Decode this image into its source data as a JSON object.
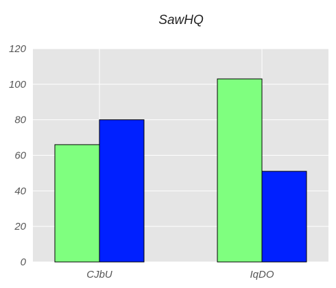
{
  "chart_data": {
    "type": "bar",
    "title": "SawHQ",
    "xlabel": "",
    "ylabel": "",
    "categories": [
      "CJbU",
      "IqDO"
    ],
    "series": [
      {
        "values": [
          66,
          103
        ],
        "color": "#7fff7f"
      },
      {
        "values": [
          80,
          51
        ],
        "color": "#0020ff"
      }
    ],
    "ylim": [
      0,
      120
    ],
    "yticks": [
      0,
      20,
      40,
      60,
      80,
      100,
      120
    ],
    "grid": true,
    "plot_background": "#e5e5e5",
    "legend": "none"
  }
}
